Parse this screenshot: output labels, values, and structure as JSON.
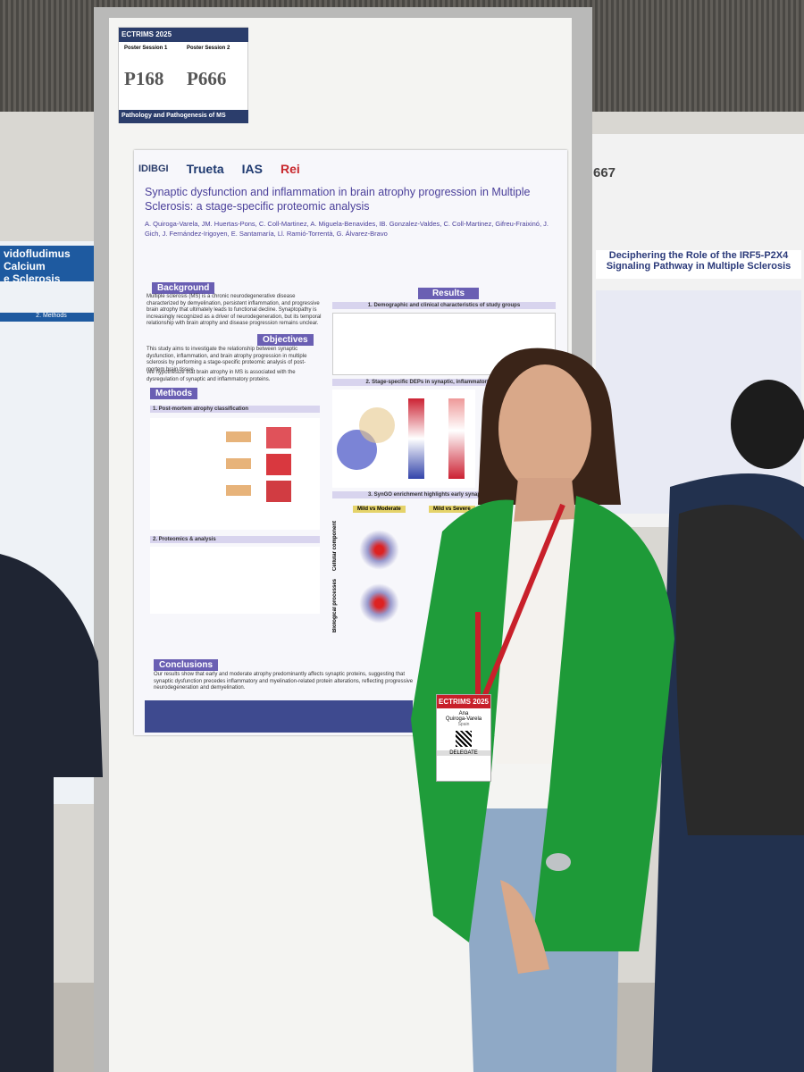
{
  "board": {
    "event": "ECTRIMS 2025",
    "session1": "Poster Session 1",
    "session2": "Poster Session 2",
    "code1": "P168",
    "code2": "P666",
    "topic": "Pathology and Pathogenesis of MS"
  },
  "poster": {
    "logos": [
      "IDIBGI",
      "Trueta",
      "IAS",
      "Rei"
    ],
    "title": "Synaptic dysfunction and inflammation in brain atrophy progression in Multiple Sclerosis: a stage-specific proteomic analysis",
    "authors": "A. Quiroga-Varela, JM. Huertas-Pons, C. Coll-Martinez, A. Miguela-Benavides, IB. Gonzalez-Valdes, C. Coll-Martinez, Gifreu-Fraixinó, J. Gich, J. Fernández-Irigoyen, E. Santamaría, Ll. Ramió-Torrentà, G. Álvarez-Bravo",
    "sections": {
      "background": "Background",
      "objectives": "Objectives",
      "methods": "Methods",
      "results": "Results",
      "conclusions": "Conclusions"
    },
    "background_text": "Multiple sclerosis (MS) is a chronic neurodegenerative disease characterized by demyelination, persistent inflammation, and progressive brain atrophy that ultimately leads to functional decline. Synaptopathy is increasingly recognized as a driver of neurodegeneration, but its temporal relationship with brain atrophy and disease progression remains unclear.",
    "objectives_text": [
      "This study aims to investigate the relationship between synaptic dysfunction, inflammation, and brain atrophy progression in multiple sclerosis by performing a stage-specific proteomic analysis of post-mortem brain tissue.",
      "We hypothesize that brain atrophy in MS is associated with the dysregulation of synaptic and inflammatory proteins."
    ],
    "methods_sub": [
      "1. Post-mortem atrophy classification",
      "2. Proteomics & analysis"
    ],
    "results_sub": [
      "1. Demographic and clinical characteristics of study groups",
      "2. Stage-specific DEPs in synaptic, inflammatory and myelina",
      "3. SynGO enrichment highlights early synaptic vulnerability"
    ],
    "comparisons": [
      "Mild vs Moderate",
      "Mild vs Severe"
    ],
    "axes": [
      "Cellular component",
      "Biological processes"
    ],
    "conclusions_text": "Our results show that early and moderate atrophy predominantly affects synaptic proteins, suggesting that synaptic dysfunction precedes inflammatory and myelination-related protein alterations, reflecting progressive neurodegeneration and demyelination."
  },
  "badge": {
    "event": "ECTRIMS 2025",
    "first": "Ana",
    "last": "Quiroga-Varela",
    "country": "Spain",
    "role": "DELEGATE"
  },
  "neighbor_right": {
    "code": "667",
    "title": "Deciphering the Role of the IRF5-P2X4 Signaling Pathway in Multiple Sclerosis"
  },
  "neighbor_left": {
    "title1": "vidofludimus Calcium",
    "title2": "e Sclerosis",
    "sub": "2. Methods"
  }
}
